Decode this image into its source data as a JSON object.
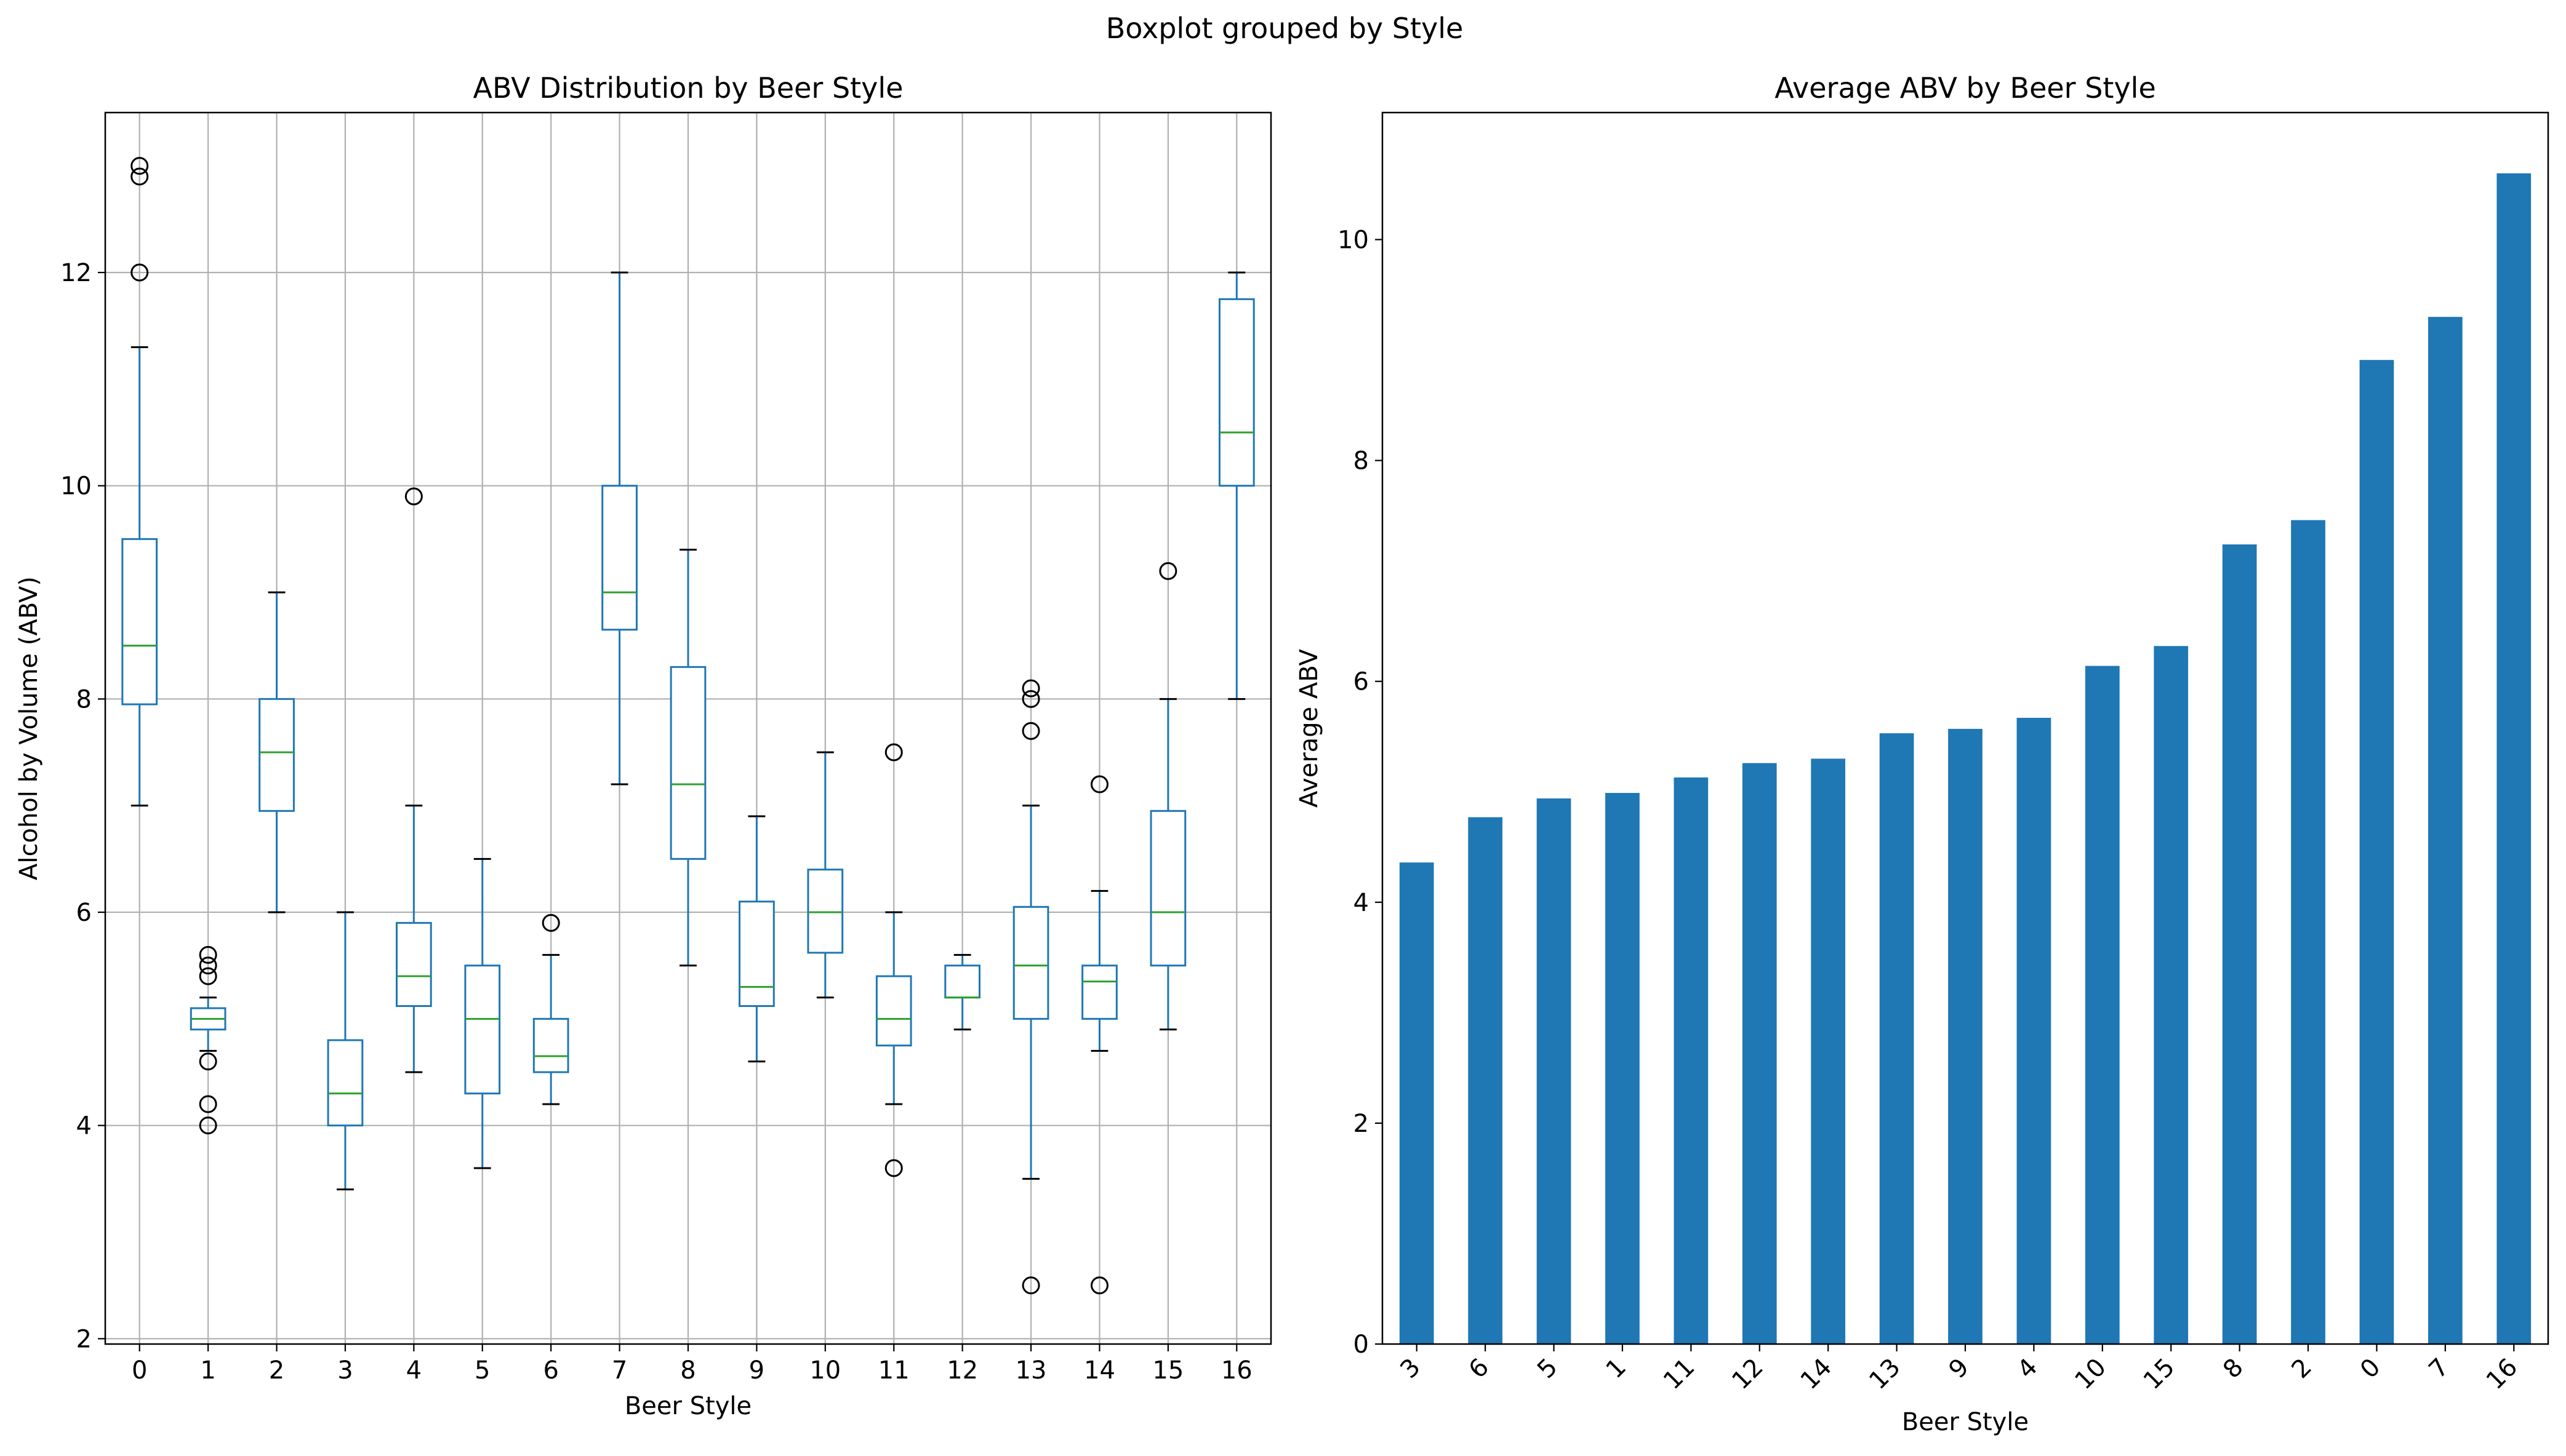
{
  "figure": {
    "suptitle": "Boxplot grouped by Style"
  },
  "colors": {
    "box": "#1f77b4",
    "median": "#2ca02c",
    "bar": "#1f77b4",
    "grid": "#b0b0b0",
    "axis": "#000000"
  },
  "chart_data": [
    {
      "type": "boxplot",
      "title": "ABV Distribution by Beer Style",
      "xlabel": "Beer Style",
      "ylabel": "Alcohol by Volume (ABV)",
      "ylim": [
        1.95,
        13.5
      ],
      "yticks": [
        2,
        4,
        6,
        8,
        10,
        12
      ],
      "grid": true,
      "categories": [
        "0",
        "1",
        "2",
        "3",
        "4",
        "5",
        "6",
        "7",
        "8",
        "9",
        "10",
        "11",
        "12",
        "13",
        "14",
        "15",
        "16"
      ],
      "boxes": [
        {
          "whislo": 7.0,
          "q1": 7.95,
          "med": 8.5,
          "q3": 9.5,
          "whishi": 11.3,
          "fliers": [
            12.0,
            12.9,
            13.0
          ]
        },
        {
          "whislo": 4.7,
          "q1": 4.9,
          "med": 5.0,
          "q3": 5.1,
          "whishi": 5.2,
          "fliers": [
            4.0,
            4.2,
            4.6,
            5.4,
            5.5,
            5.6
          ]
        },
        {
          "whislo": 6.0,
          "q1": 6.95,
          "med": 7.5,
          "q3": 8.0,
          "whishi": 9.0,
          "fliers": []
        },
        {
          "whislo": 3.4,
          "q1": 4.0,
          "med": 4.3,
          "q3": 4.8,
          "whishi": 6.0,
          "fliers": []
        },
        {
          "whislo": 4.5,
          "q1": 5.12,
          "med": 5.4,
          "q3": 5.9,
          "whishi": 7.0,
          "fliers": [
            9.9
          ]
        },
        {
          "whislo": 3.6,
          "q1": 4.3,
          "med": 5.0,
          "q3": 5.5,
          "whishi": 6.5,
          "fliers": []
        },
        {
          "whislo": 4.2,
          "q1": 4.5,
          "med": 4.65,
          "q3": 5.0,
          "whishi": 5.6,
          "fliers": [
            5.9
          ]
        },
        {
          "whislo": 7.2,
          "q1": 8.65,
          "med": 9.0,
          "q3": 10.0,
          "whishi": 12.0,
          "fliers": []
        },
        {
          "whislo": 5.5,
          "q1": 6.5,
          "med": 7.2,
          "q3": 8.3,
          "whishi": 9.4,
          "fliers": []
        },
        {
          "whislo": 4.6,
          "q1": 5.12,
          "med": 5.3,
          "q3": 6.1,
          "whishi": 6.9,
          "fliers": []
        },
        {
          "whislo": 5.2,
          "q1": 5.62,
          "med": 6.0,
          "q3": 6.4,
          "whishi": 7.5,
          "fliers": []
        },
        {
          "whislo": 4.2,
          "q1": 4.75,
          "med": 5.0,
          "q3": 5.4,
          "whishi": 6.0,
          "fliers": [
            3.6,
            7.5
          ]
        },
        {
          "whislo": 4.9,
          "q1": 5.2,
          "med": 5.2,
          "q3": 5.5,
          "whishi": 5.6,
          "fliers": []
        },
        {
          "whislo": 3.5,
          "q1": 5.0,
          "med": 5.5,
          "q3": 6.05,
          "whishi": 7.0,
          "fliers": [
            2.5,
            7.7,
            8.0,
            8.1
          ]
        },
        {
          "whislo": 4.7,
          "q1": 5.0,
          "med": 5.35,
          "q3": 5.5,
          "whishi": 6.2,
          "fliers": [
            2.5,
            7.2
          ]
        },
        {
          "whislo": 4.9,
          "q1": 5.5,
          "med": 6.0,
          "q3": 6.95,
          "whishi": 8.0,
          "fliers": [
            9.2
          ]
        },
        {
          "whislo": 8.0,
          "q1": 10.0,
          "med": 10.5,
          "q3": 11.75,
          "whishi": 12.0,
          "fliers": []
        }
      ]
    },
    {
      "type": "bar",
      "title": "Average ABV by Beer Style",
      "xlabel": "Beer Style",
      "ylabel": "Average ABV",
      "ylim": [
        0,
        11.15
      ],
      "yticks": [
        0,
        2,
        4,
        6,
        8,
        10
      ],
      "grid": false,
      "categories": [
        "3",
        "6",
        "5",
        "1",
        "11",
        "12",
        "14",
        "13",
        "9",
        "4",
        "10",
        "15",
        "8",
        "2",
        "0",
        "7",
        "16"
      ],
      "values": [
        4.36,
        4.77,
        4.94,
        4.99,
        5.13,
        5.26,
        5.3,
        5.53,
        5.57,
        5.67,
        6.14,
        6.32,
        7.24,
        7.46,
        8.91,
        9.3,
        10.6
      ]
    }
  ]
}
